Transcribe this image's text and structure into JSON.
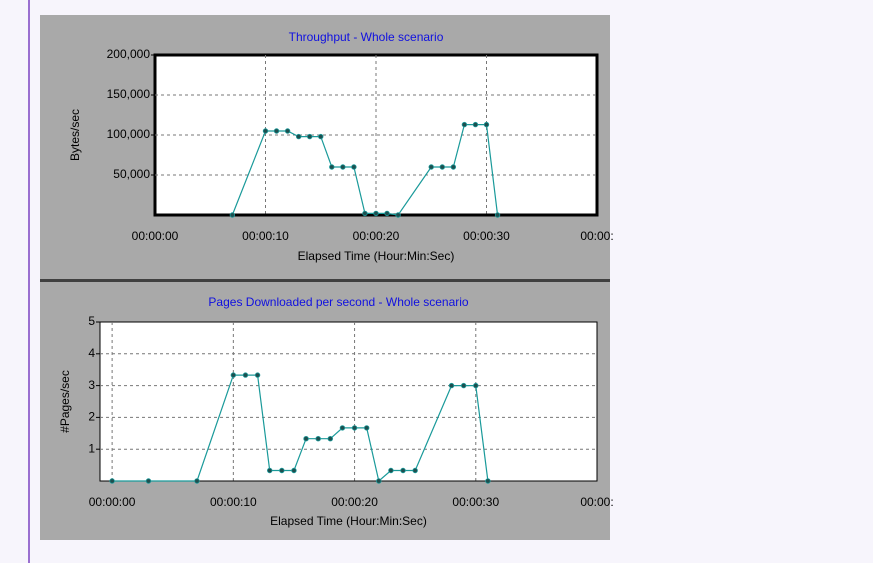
{
  "chart_data": [
    {
      "type": "line",
      "title": "Throughput - Whole scenario",
      "x_label": "Elapsed Time (Hour:Min:Sec)",
      "y_label": "Bytes/sec",
      "xlim": [
        0,
        40
      ],
      "ylim": [
        0,
        200000
      ],
      "grid": true,
      "xticks": [
        {
          "value": 0,
          "label": "00:00:00"
        },
        {
          "value": 10,
          "label": "00:00:10"
        },
        {
          "value": 20,
          "label": "00:00:20"
        },
        {
          "value": 30,
          "label": "00:00:30"
        },
        {
          "value": 40,
          "label": "00:00:"
        }
      ],
      "yticks": [
        {
          "value": 50000,
          "label": "50,000"
        },
        {
          "value": 100000,
          "label": "100,000"
        },
        {
          "value": 150000,
          "label": "150,000"
        },
        {
          "value": 200000,
          "label": "200,000"
        }
      ],
      "series": [
        {
          "color": "#1a9a9a",
          "x": [
            7,
            10,
            11,
            12,
            13,
            14,
            15,
            16,
            17,
            18,
            19,
            20,
            21,
            22,
            25,
            26,
            27,
            28,
            29,
            30,
            31
          ],
          "values": [
            0,
            105000,
            105000,
            105000,
            98000,
            98000,
            98000,
            60000,
            60000,
            60000,
            2000,
            2000,
            2000,
            0,
            60000,
            60000,
            60000,
            113000,
            113000,
            113000,
            0
          ]
        }
      ]
    },
    {
      "type": "line",
      "title": "Pages Downloaded  per second - Whole scenario",
      "x_label": "Elapsed Time (Hour:Min:Sec)",
      "y_label": "#Pages/sec",
      "xlim": [
        -1,
        40
      ],
      "ylim": [
        0,
        5
      ],
      "grid": true,
      "xticks": [
        {
          "value": 0,
          "label": "00:00:00"
        },
        {
          "value": 10,
          "label": "00:00:10"
        },
        {
          "value": 20,
          "label": "00:00:20"
        },
        {
          "value": 30,
          "label": "00:00:30"
        },
        {
          "value": 40,
          "label": "00:00:"
        }
      ],
      "yticks": [
        1,
        2,
        3,
        4,
        5
      ],
      "series": [
        {
          "color": "#1a9a9a",
          "x": [
            0,
            3,
            7,
            10,
            11,
            12,
            13,
            14,
            15,
            16,
            17,
            18,
            19,
            20,
            21,
            22,
            23,
            24,
            25,
            28,
            29,
            30,
            31
          ],
          "values": [
            0,
            0,
            0,
            3.33,
            3.33,
            3.33,
            0.33,
            0.33,
            0.33,
            1.33,
            1.33,
            1.33,
            1.67,
            1.67,
            1.67,
            0,
            0.33,
            0.33,
            0.33,
            3,
            3,
            3,
            0
          ]
        }
      ]
    }
  ]
}
